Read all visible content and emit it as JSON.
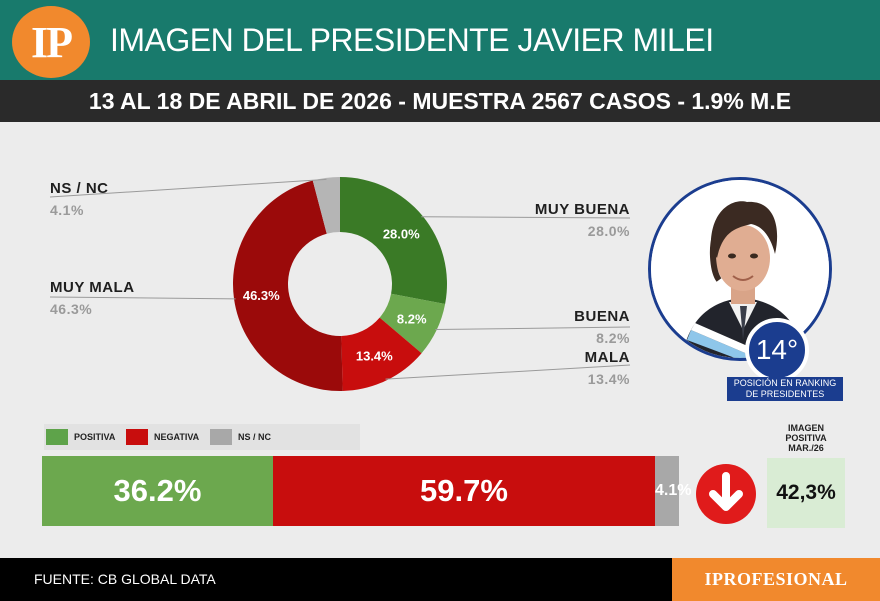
{
  "header": {
    "logo_text": "IP",
    "title": "IMAGEN DEL PRESIDENTE JAVIER MILEI"
  },
  "subtitle": "13 AL 18 DE ABRIL DE 2026 - MUESTRA 2567 CASOS - 1.9% M.E",
  "chart_data": {
    "type": "pie",
    "variant": "donut",
    "slices": [
      {
        "label": "MUY BUENA",
        "value": 28.0,
        "display": "28.0%",
        "color": "#3a7a26"
      },
      {
        "label": "BUENA",
        "value": 8.2,
        "display": "8.2%",
        "color": "#6ca84e"
      },
      {
        "label": "MALA",
        "value": 13.4,
        "display": "13.4%",
        "color": "#c80d0d"
      },
      {
        "label": "MUY MALA",
        "value": 46.3,
        "display": "46.3%",
        "color": "#9b0a0a"
      },
      {
        "label": "NS / NC",
        "value": 4.1,
        "display": "4.1%",
        "color": "#b5b5b5"
      }
    ]
  },
  "summary_legend": [
    {
      "label": "POSITIVA",
      "color": "#5ea34a"
    },
    {
      "label": "NEGATIVA",
      "color": "#c80d0d"
    },
    {
      "label": "NS / NC",
      "color": "#a8a8a8"
    }
  ],
  "summary_bar": {
    "positiva": "36.2%",
    "negativa": "59.7%",
    "nsnc": "4.1%"
  },
  "trend": {
    "direction": "down",
    "icon": "arrow-down-icon",
    "color": "#e01b1b"
  },
  "previous": {
    "title": "IMAGEN POSITIVA MAR./26",
    "value": "42,3%"
  },
  "rank": {
    "value": "14°",
    "caption": "POSICIÓN EN RANKING DE PRESIDENTES"
  },
  "footer": {
    "source": "FUENTE: CB GLOBAL DATA",
    "brand": "IPROFESIONAL"
  }
}
